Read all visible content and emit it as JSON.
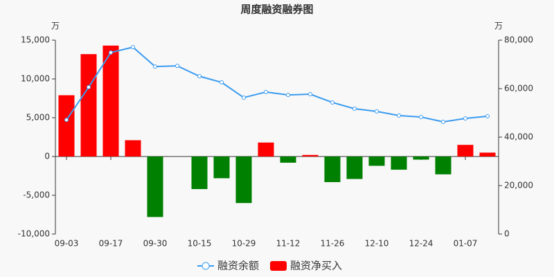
{
  "chart_data": {
    "type": "bar_line",
    "title": "周度融资融券图",
    "y_unit": "万",
    "y2_unit": "万",
    "categories": [
      "09-03",
      null,
      "09-17",
      null,
      "09-30",
      null,
      "10-15",
      null,
      "10-29",
      null,
      "11-12",
      null,
      "11-26",
      null,
      "12-10",
      null,
      "12-24",
      null,
      "01-07",
      null
    ],
    "series": [
      {
        "name": "融资余额",
        "type": "line",
        "axis": "y2",
        "color": "#3a9bf0",
        "values": [
          47100,
          60600,
          74900,
          77100,
          69100,
          69400,
          65100,
          62600,
          56300,
          58600,
          57400,
          57700,
          54300,
          51700,
          50600,
          48900,
          48300,
          46300,
          47700,
          48600
        ]
      },
      {
        "name": "融资净买入",
        "type": "bar",
        "axis": "y",
        "color": "#ff0000",
        "negative_color": "#008000",
        "values": [
          7900,
          13200,
          14300,
          2100,
          -7800,
          0,
          -4200,
          -2800,
          -6000,
          1800,
          -800,
          200,
          -3300,
          -2900,
          -1200,
          -1700,
          -400,
          -2300,
          1500,
          500
        ]
      }
    ],
    "ylim": [
      -10000,
      15000
    ],
    "yticks": [
      {
        "value": -10000,
        "label": "-10,000"
      },
      {
        "value": -5000,
        "label": "-5,000"
      },
      0,
      {
        "value": 5000,
        "label": "5,000"
      },
      {
        "value": 10000,
        "label": "10,000"
      },
      {
        "value": 15000,
        "label": "15,000"
      }
    ],
    "y2lim": [
      0,
      80000
    ],
    "y2ticks": [
      0,
      {
        "value": 20000,
        "label": "20,000"
      },
      {
        "value": 40000,
        "label": "40,000"
      },
      {
        "value": 60000,
        "label": "60,000"
      },
      {
        "value": 80000,
        "label": "80,000"
      }
    ],
    "legend": "bottom"
  }
}
